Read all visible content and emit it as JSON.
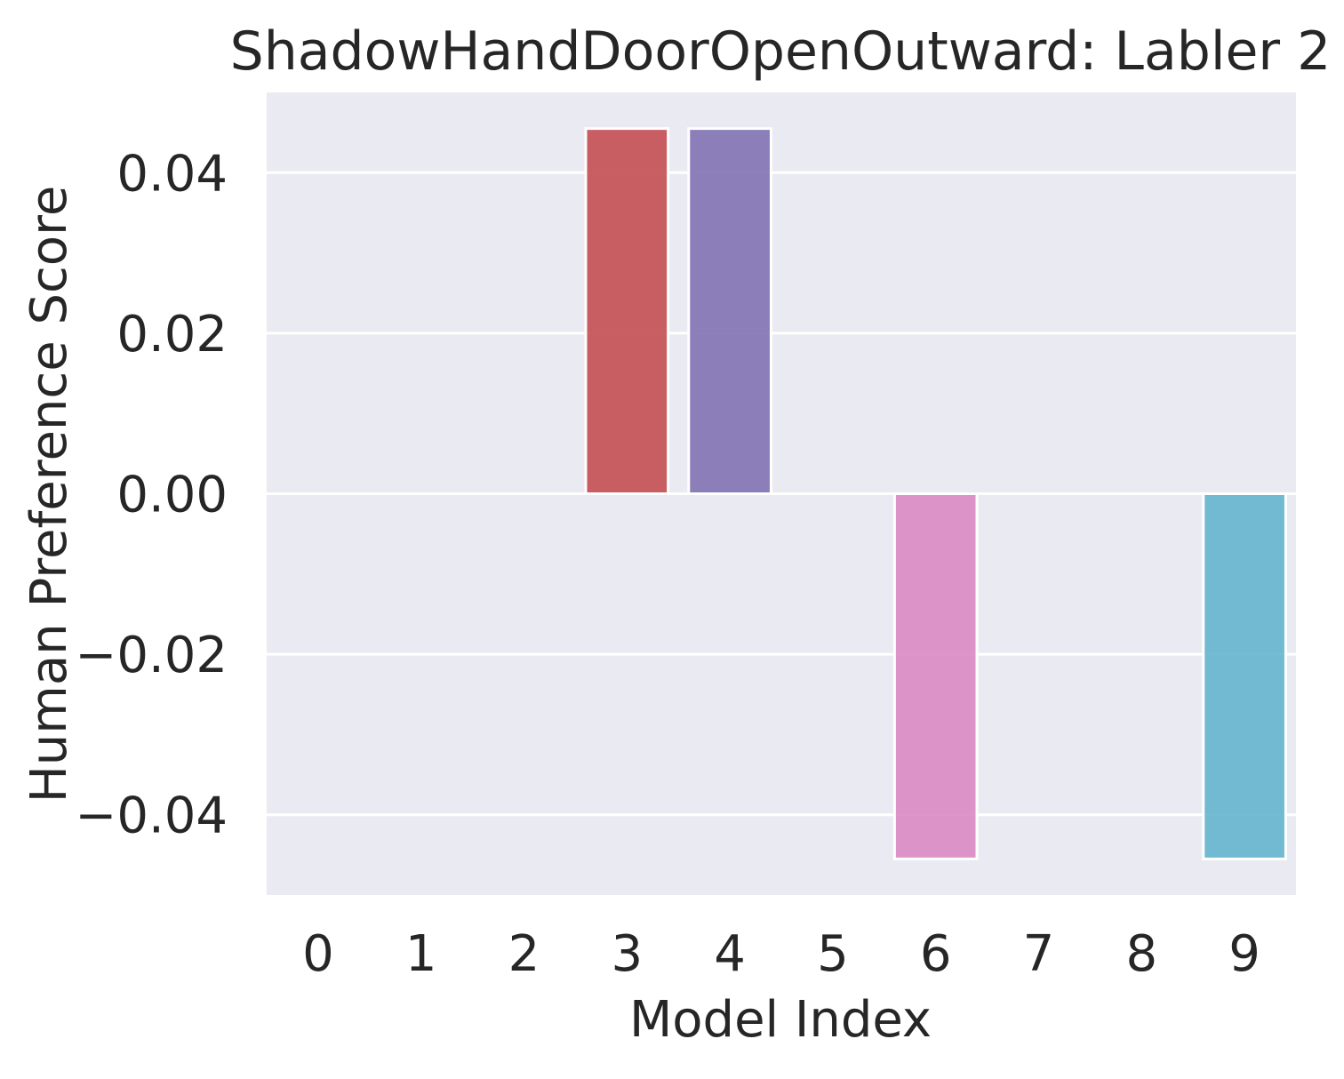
{
  "chart_data": {
    "type": "bar",
    "title": "ShadowHandDoorOpenOutward: Labler 2",
    "xlabel": "Model Index",
    "ylabel": "Human Preference Score",
    "categories": [
      "0",
      "1",
      "2",
      "3",
      "4",
      "5",
      "6",
      "7",
      "8",
      "9"
    ],
    "values": [
      0,
      0,
      0,
      0.0455,
      0.0455,
      0,
      -0.0455,
      0,
      0,
      -0.0455
    ],
    "bar_colors": [
      "#4c72b0",
      "#dd8452",
      "#55a868",
      "#c44e52",
      "#8172b3",
      "#937860",
      "#da8bc3",
      "#8c8c8c",
      "#ccb974",
      "#64b5cd"
    ],
    "ylim": [
      -0.05,
      0.05
    ],
    "yticks": [
      -0.04,
      -0.02,
      0.0,
      0.02,
      0.04
    ],
    "ytick_labels": [
      "−0.04",
      "−0.02",
      "0.00",
      "0.02",
      "0.04"
    ],
    "grid": true,
    "background_color": "#eaeaf2",
    "gridline_color": "#ffffff",
    "bar_opacity": 0.9
  }
}
